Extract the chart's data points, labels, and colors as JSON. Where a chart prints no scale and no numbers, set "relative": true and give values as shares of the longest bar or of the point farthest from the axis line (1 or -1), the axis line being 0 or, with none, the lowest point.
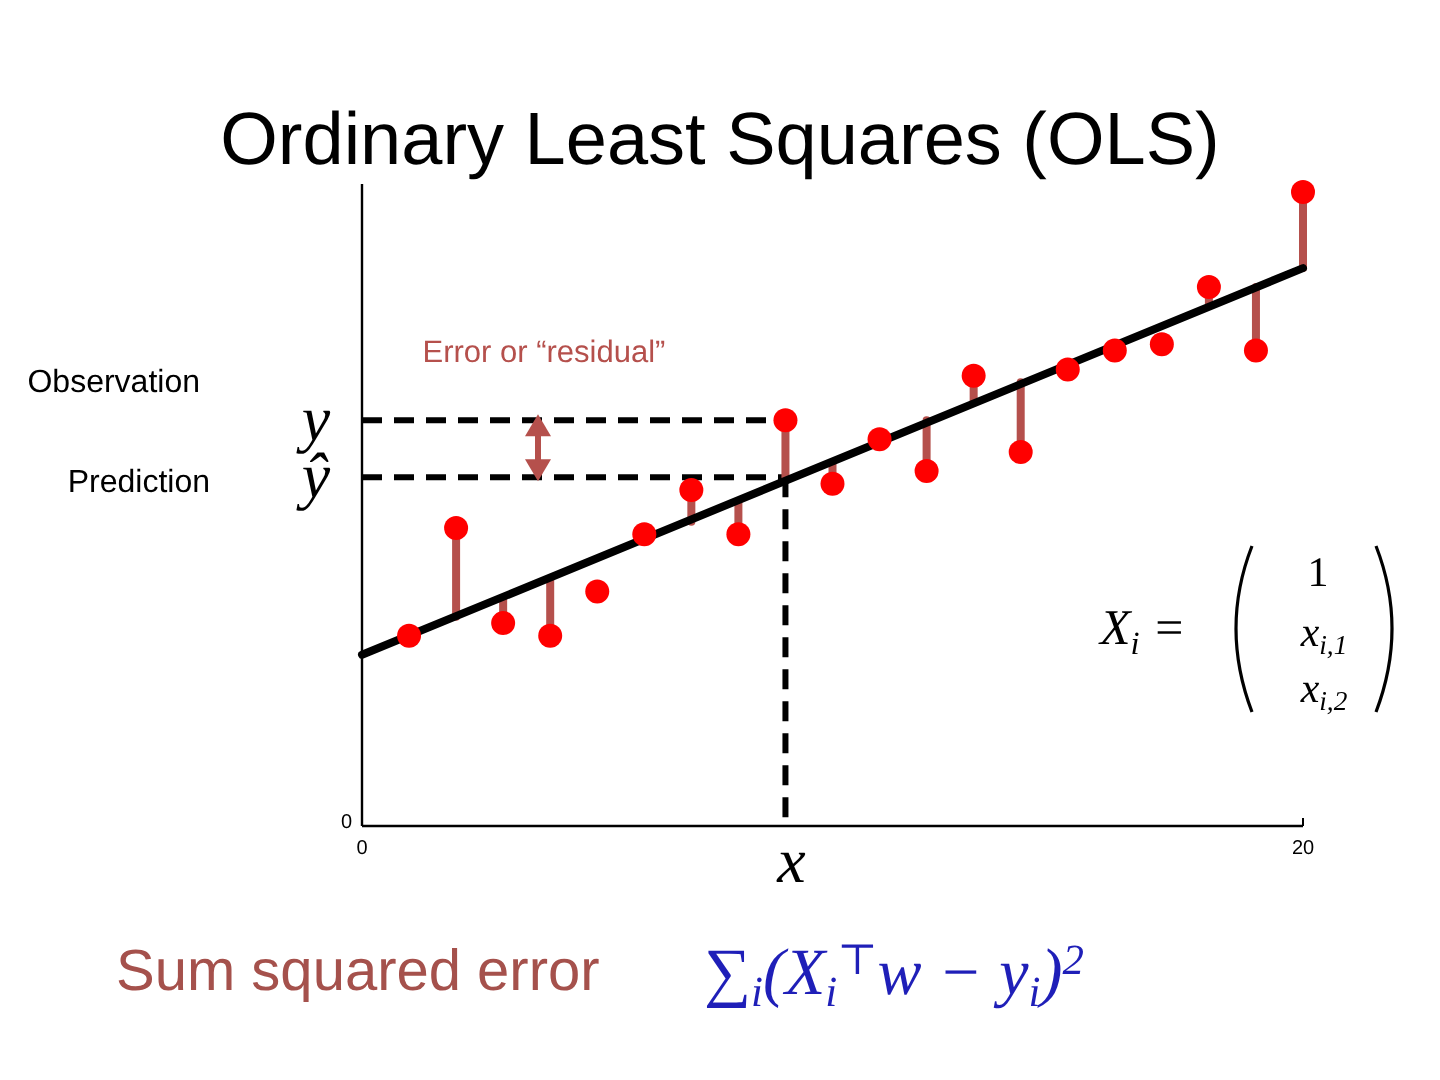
{
  "chart_data": {
    "type": "scatter",
    "title": "Ordinary Least Squares (OLS)",
    "relative": true,
    "xlim": [
      0,
      20
    ],
    "xticks": [
      0,
      20
    ],
    "series": [
      {
        "type": "line",
        "color": "#b5504c",
        "x": [
          2,
          2,
          null,
          3,
          3,
          null,
          4,
          4,
          null,
          7,
          7,
          null,
          8,
          8,
          null,
          9,
          9,
          null,
          10,
          10,
          null,
          12,
          12,
          null,
          13,
          13,
          null,
          14,
          14,
          null,
          18,
          18,
          null,
          19,
          19,
          null,
          20,
          20
        ],
        "values": [
          0.47,
          0.33,
          null,
          0.32,
          0.36,
          null,
          0.3,
          0.39,
          null,
          0.53,
          0.48,
          null,
          0.46,
          0.51,
          null,
          0.64,
          0.55,
          null,
          0.54,
          0.57,
          null,
          0.56,
          0.64,
          null,
          0.71,
          0.67,
          null,
          0.59,
          0.7,
          null,
          0.85,
          0.82,
          null,
          0.75,
          0.85,
          null,
          1.0,
          0.88
        ]
      },
      {
        "type": "line",
        "color": "#000000",
        "x": [
          0,
          20
        ],
        "values": [
          0.27,
          0.88
        ]
      },
      {
        "color": "#ff0000",
        "marker": "circle",
        "x": [
          1,
          2,
          3,
          4,
          5,
          6,
          7,
          8,
          9,
          10,
          11,
          12,
          13,
          14,
          15,
          16,
          17,
          18,
          19,
          20
        ],
        "values": [
          0.3,
          0.47,
          0.32,
          0.3,
          0.37,
          0.46,
          0.53,
          0.46,
          0.64,
          0.54,
          0.61,
          0.56,
          0.71,
          0.59,
          0.72,
          0.75,
          0.76,
          0.85,
          0.75,
          1.0
        ]
      }
    ],
    "ref_lines": [
      {
        "axis": "y",
        "value": 0.64,
        "label": "y",
        "color": "#000000",
        "line_style": "dashed"
      },
      {
        "axis": "y",
        "value": 0.55,
        "label": "ŷ",
        "color": "#000000",
        "line_style": "dashed"
      },
      {
        "axis": "x",
        "value": 9,
        "label": "x",
        "color": "#000000",
        "line_style": "dashed"
      }
    ],
    "annotations": [
      "0",
      "Observation",
      "Prediction",
      "Error or “residual”",
      "Sum squared error",
      "∑$_{i}$(X$_{i}$$^{⊤}$w − y$_{i}$)$^{2}$",
      "X$_{i}$ =",
      "1",
      "x$_{i,1}$",
      "x$_{i,2}$"
    ]
  }
}
